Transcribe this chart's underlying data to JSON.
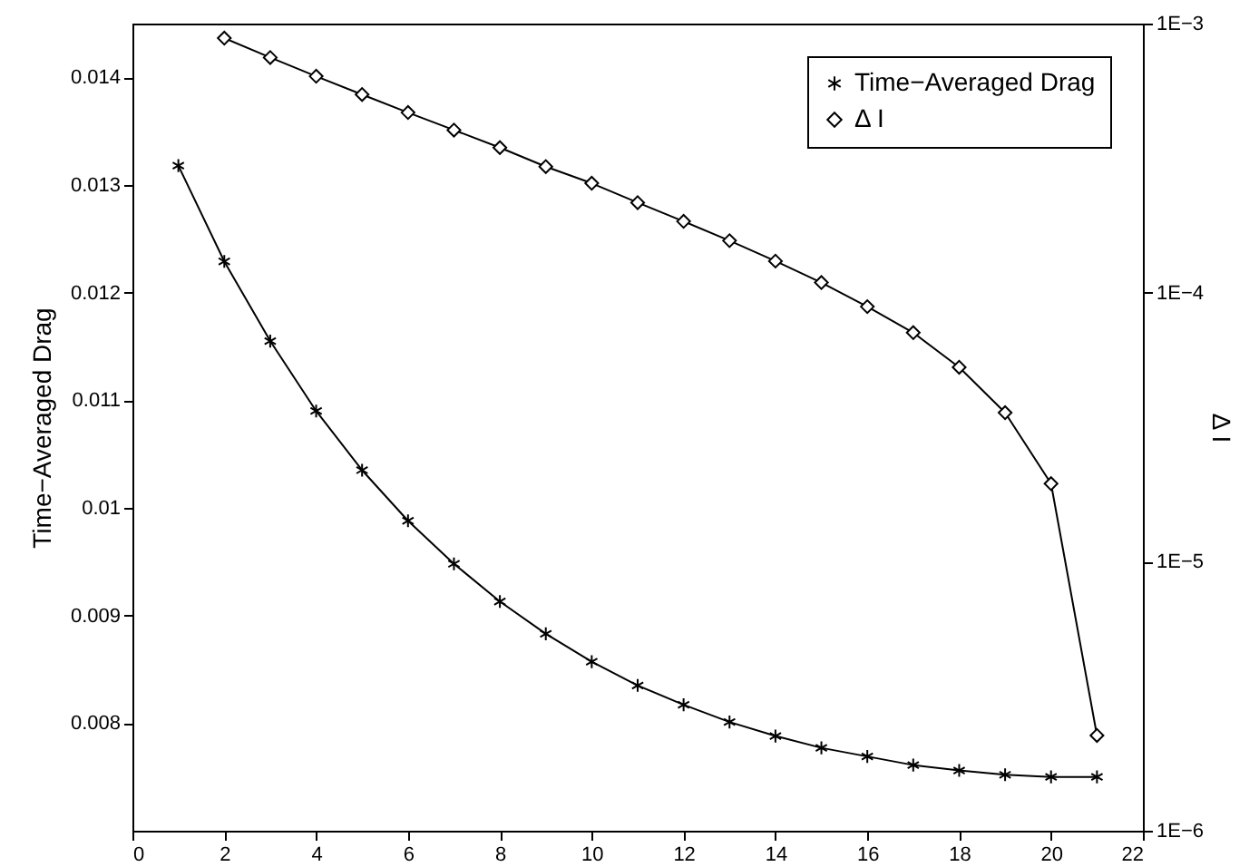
{
  "chart_data": {
    "type": "line",
    "xlabel": null,
    "ylabel": "Time−Averaged Drag",
    "y2label": "Δ I",
    "x": [
      1,
      2,
      3,
      4,
      5,
      6,
      7,
      8,
      9,
      10,
      11,
      12,
      13,
      14,
      15,
      16,
      17,
      18,
      19,
      20,
      21
    ],
    "xlim": [
      0,
      22
    ],
    "xticks": [
      0,
      2,
      4,
      6,
      8,
      10,
      12,
      14,
      16,
      18,
      20,
      22
    ],
    "ylim": [
      0.007,
      0.0145
    ],
    "yticks": [
      0.008,
      0.009,
      0.01,
      0.011,
      0.012,
      0.013,
      0.014
    ],
    "y2lim": [
      1e-06,
      0.001
    ],
    "y2ticks": [
      {
        "value": 1e-06,
        "label": "1E−6"
      },
      {
        "value": 1e-05,
        "label": "1E−5"
      },
      {
        "value": 0.0001,
        "label": "1E−4"
      },
      {
        "value": 0.001,
        "label": "1E−3"
      }
    ],
    "log": "y2",
    "grid": false,
    "legend": "top right",
    "line_style": "solid",
    "series": [
      {
        "name": "Time−Averaged Drag",
        "color": "#000000",
        "marker": "cross",
        "values": [
          0.01318,
          0.01229,
          0.01155,
          0.0109,
          0.01035,
          0.00988,
          0.00948,
          0.00913,
          0.00883,
          0.00857,
          0.00835,
          0.00817,
          0.00801,
          0.00788,
          0.00777,
          0.00769,
          0.00761,
          0.00756,
          0.00752,
          0.0075,
          0.0075
        ]
      },
      {
        "name": "Δ I",
        "color": "#000000",
        "marker": "diamond",
        "axis": "y2",
        "values": [
          null,
          0.000883,
          0.000748,
          0.000637,
          0.000545,
          0.000467,
          0.000402,
          0.000346,
          0.000294,
          0.000255,
          0.000216,
          0.000184,
          0.000156,
          0.000131,
          0.000109,
          8.87e-05,
          7.1e-05,
          5.28e-05,
          3.58e-05,
          1.95e-05,
          2.26e-06
        ]
      }
    ]
  }
}
